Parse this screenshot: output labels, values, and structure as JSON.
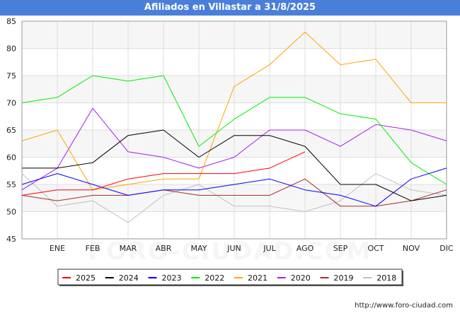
{
  "header": {
    "title": "Afiliados en Villastar a 31/8/2025"
  },
  "footer": {
    "source": "http://www.foro-ciudad.com",
    "watermark": "FORO-CIUDAD.COM"
  },
  "chart_data": {
    "type": "line",
    "categories": [
      "",
      "ENE",
      "FEB",
      "MAR",
      "ABR",
      "MAY",
      "JUN",
      "JUL",
      "AGO",
      "SEP",
      "OCT",
      "NOV",
      "DIC"
    ],
    "ylim": [
      45,
      85
    ],
    "yticks": [
      45,
      50,
      55,
      60,
      65,
      70,
      75,
      80,
      85
    ],
    "grid": true,
    "legend_position": "bottom",
    "series": [
      {
        "name": "2025",
        "color": "#ff0000",
        "values": [
          53,
          54,
          54,
          56,
          57,
          57,
          57,
          58,
          61,
          null,
          null,
          null,
          null
        ]
      },
      {
        "name": "2024",
        "color": "#000000",
        "values": [
          58,
          58,
          59,
          64,
          65,
          60,
          64,
          64,
          62,
          55,
          55,
          52,
          53
        ]
      },
      {
        "name": "2023",
        "color": "#0000ff",
        "values": [
          55,
          57,
          55,
          53,
          54,
          54,
          55,
          56,
          54,
          53,
          51,
          56,
          58
        ]
      },
      {
        "name": "2022",
        "color": "#00ee00",
        "values": [
          70,
          71,
          75,
          74,
          75,
          62,
          67,
          71,
          71,
          68,
          67,
          59,
          55
        ]
      },
      {
        "name": "2021",
        "color": "#ffa500",
        "values": [
          63,
          65,
          54,
          55,
          56,
          56,
          73,
          77,
          83,
          77,
          78,
          70,
          70
        ]
      },
      {
        "name": "2020",
        "color": "#a020f0",
        "values": [
          54,
          58,
          69,
          61,
          60,
          58,
          60,
          65,
          65,
          62,
          66,
          65,
          63
        ]
      },
      {
        "name": "2019",
        "color": "#a52a2a",
        "values": [
          53,
          52,
          53,
          53,
          54,
          53,
          53,
          53,
          56,
          51,
          51,
          52,
          54
        ]
      },
      {
        "name": "2018",
        "color": "#c0c0c0",
        "values": [
          57,
          51,
          52,
          48,
          53,
          55,
          51,
          51,
          50,
          52,
          57,
          54,
          53
        ]
      }
    ]
  }
}
